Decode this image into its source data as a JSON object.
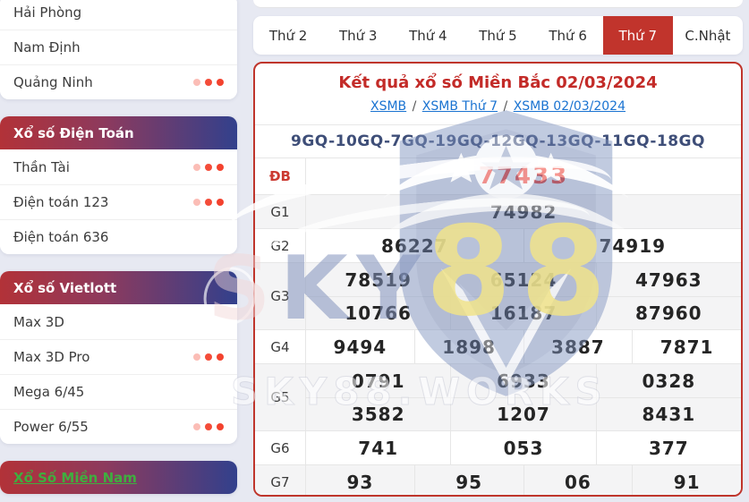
{
  "sidebar": {
    "cards": [
      {
        "key": "provinces",
        "header": null,
        "items": [
          {
            "key": "hai-phong",
            "label": "Hải Phòng",
            "dots": false
          },
          {
            "key": "nam-dinh",
            "label": "Nam Định",
            "dots": false
          },
          {
            "key": "quang-ninh",
            "label": "Quảng Ninh",
            "dots": true
          }
        ]
      },
      {
        "key": "dien-toan",
        "header": "Xổ số Điện Toán",
        "header_link": false,
        "items": [
          {
            "key": "than-tai",
            "label": "Thần Tài",
            "dots": true
          },
          {
            "key": "dien-toan-123",
            "label": "Điện toán 123",
            "dots": true
          },
          {
            "key": "dien-toan-636",
            "label": "Điện toán 636",
            "dots": false
          }
        ]
      },
      {
        "key": "vietlott",
        "header": "Xổ số Vietlott",
        "header_link": false,
        "items": [
          {
            "key": "max-3d",
            "label": "Max 3D",
            "dots": false
          },
          {
            "key": "max-3d-pro",
            "label": "Max 3D Pro",
            "dots": true
          },
          {
            "key": "mega-6-45",
            "label": "Mega 6/45",
            "dots": false
          },
          {
            "key": "power-6-55",
            "label": "Power 6/55",
            "dots": true
          }
        ]
      },
      {
        "key": "mien-nam",
        "header": "Xổ Số Miền Nam",
        "header_link": true,
        "items": []
      }
    ]
  },
  "tabs": [
    {
      "key": "thu-2",
      "label": "Thứ 2",
      "active": false
    },
    {
      "key": "thu-3",
      "label": "Thứ 3",
      "active": false
    },
    {
      "key": "thu-4",
      "label": "Thứ 4",
      "active": false
    },
    {
      "key": "thu-5",
      "label": "Thứ 5",
      "active": false
    },
    {
      "key": "thu-6",
      "label": "Thứ 6",
      "active": false
    },
    {
      "key": "thu-7",
      "label": "Thứ 7",
      "active": true
    },
    {
      "key": "c-nhat",
      "label": "C.Nhật",
      "active": false
    }
  ],
  "panel": {
    "title": "Kết quả xổ số Miền Bắc 02/03/2024",
    "breadcrumb": [
      {
        "key": "xsmb",
        "label": "XSMB"
      },
      {
        "key": "xsmb-thu-7",
        "label": "XSMB Thứ 7"
      },
      {
        "key": "xsmb-date",
        "label": "XSMB 02/03/2024"
      }
    ],
    "separator": "/",
    "code": "9GQ-10GQ-7GQ-19GQ-12GQ-13GQ-11GQ-18GQ",
    "results": {
      "rows": [
        {
          "key": "db",
          "label": "ĐB",
          "special": true,
          "lines": [
            [
              "77433"
            ]
          ]
        },
        {
          "key": "g1",
          "label": "G1",
          "special": false,
          "lines": [
            [
              "74982"
            ]
          ]
        },
        {
          "key": "g2",
          "label": "G2",
          "special": false,
          "lines": [
            [
              "86227",
              "74919"
            ]
          ]
        },
        {
          "key": "g3",
          "label": "G3",
          "special": false,
          "lines": [
            [
              "78519",
              "65124",
              "47963"
            ],
            [
              "10766",
              "16187",
              "87960"
            ]
          ]
        },
        {
          "key": "g4",
          "label": "G4",
          "special": false,
          "lines": [
            [
              "9494",
              "1898",
              "3887",
              "7871"
            ]
          ]
        },
        {
          "key": "g5",
          "label": "G5",
          "special": false,
          "lines": [
            [
              "0791",
              "6933",
              "0328"
            ],
            [
              "3582",
              "1207",
              "8431"
            ]
          ]
        },
        {
          "key": "g6",
          "label": "G6",
          "special": false,
          "lines": [
            [
              "741",
              "053",
              "377"
            ]
          ]
        },
        {
          "key": "g7",
          "label": "G7",
          "special": false,
          "lines": [
            [
              "93",
              "95",
              "06",
              "91"
            ]
          ]
        }
      ]
    }
  },
  "watermark": {
    "brand_s": "S",
    "brand_ky": "KY",
    "brand_88": "88",
    "site": "SKY88.WORKS"
  },
  "colors": {
    "accent_red": "#c1342c",
    "panel_border_red": "#bf352c",
    "title_red": "#c32b28",
    "special_value_red": "#f0382b",
    "link_blue": "#1a73d1",
    "code_blue": "#3e4e78",
    "header_gradient_left": "#b23238",
    "header_gradient_right": "#32408c",
    "mien_nam_green": "#3fae3f",
    "dot_red": "#f3422e",
    "watermark_yellow": "#f0e38a",
    "row_alt_gray": "#f4f4f5"
  }
}
